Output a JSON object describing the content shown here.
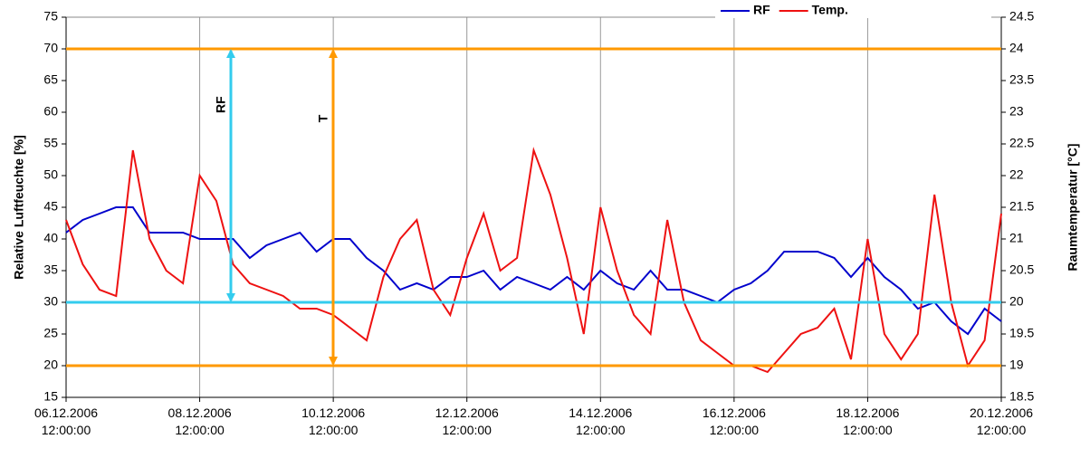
{
  "chart_data": {
    "type": "line",
    "ylabel": "Relative Luftfeuchte [%]",
    "y2label": "Raumtemperatur [°C]",
    "x": [
      "06.12.2006 12:00:00",
      "06.12.2006 18:00:00",
      "07.12.2006 00:00:00",
      "07.12.2006 06:00:00",
      "07.12.2006 12:00:00",
      "07.12.2006 18:00:00",
      "08.12.2006 00:00:00",
      "08.12.2006 06:00:00",
      "08.12.2006 12:00:00",
      "08.12.2006 18:00:00",
      "09.12.2006 00:00:00",
      "09.12.2006 06:00:00",
      "09.12.2006 12:00:00",
      "09.12.2006 18:00:00",
      "10.12.2006 00:00:00",
      "10.12.2006 06:00:00",
      "10.12.2006 12:00:00",
      "10.12.2006 18:00:00",
      "11.12.2006 00:00:00",
      "11.12.2006 06:00:00",
      "11.12.2006 12:00:00",
      "11.12.2006 18:00:00",
      "12.12.2006 00:00:00",
      "12.12.2006 06:00:00",
      "12.12.2006 12:00:00",
      "12.12.2006 18:00:00",
      "13.12.2006 00:00:00",
      "13.12.2006 06:00:00",
      "13.12.2006 12:00:00",
      "13.12.2006 18:00:00",
      "14.12.2006 00:00:00",
      "14.12.2006 06:00:00",
      "14.12.2006 12:00:00",
      "14.12.2006 18:00:00",
      "15.12.2006 00:00:00",
      "15.12.2006 06:00:00",
      "15.12.2006 12:00:00",
      "15.12.2006 18:00:00",
      "16.12.2006 00:00:00",
      "16.12.2006 06:00:00",
      "16.12.2006 12:00:00",
      "16.12.2006 18:00:00",
      "17.12.2006 00:00:00",
      "17.12.2006 06:00:00",
      "17.12.2006 12:00:00",
      "17.12.2006 18:00:00",
      "18.12.2006 00:00:00",
      "18.12.2006 06:00:00",
      "18.12.2006 12:00:00",
      "18.12.2006 18:00:00",
      "19.12.2006 00:00:00",
      "19.12.2006 06:00:00",
      "19.12.2006 12:00:00",
      "19.12.2006 18:00:00",
      "20.12.2006 00:00:00",
      "20.12.2006 06:00:00",
      "20.12.2006 12:00:00"
    ],
    "series": [
      {
        "name": "RF",
        "color": "#0000cc",
        "values": [
          41,
          43,
          44,
          45,
          45,
          41,
          41,
          41,
          40,
          40,
          40,
          37,
          39,
          40,
          41,
          38,
          40,
          40,
          37,
          35,
          32,
          33,
          32,
          34,
          34,
          35,
          32,
          34,
          33,
          32,
          34,
          32,
          35,
          33,
          32,
          35,
          32,
          32,
          31,
          30,
          32,
          33,
          35,
          38,
          38,
          38,
          37,
          34,
          37,
          34,
          32,
          29,
          30,
          27,
          25,
          29,
          27
        ]
      },
      {
        "name": "Temp.",
        "color": "#ee1111",
        "axis": "y2",
        "values": [
          21.3,
          20.6,
          20.2,
          20.1,
          22.4,
          21.0,
          20.5,
          20.3,
          22.0,
          21.6,
          20.6,
          20.3,
          20.2,
          20.1,
          19.9,
          19.9,
          19.8,
          19.6,
          19.4,
          20.4,
          21.0,
          21.3,
          20.2,
          19.8,
          20.7,
          21.4,
          20.5,
          20.7,
          22.4,
          21.7,
          20.7,
          19.5,
          21.5,
          20.5,
          19.8,
          19.5,
          21.3,
          20.0,
          19.4,
          19.2,
          19.0,
          19.0,
          18.9,
          19.2,
          19.5,
          19.6,
          19.9,
          19.1,
          21.0,
          19.5,
          19.1,
          19.5,
          21.7,
          20.0,
          19.0,
          19.4,
          21.4
        ]
      }
    ],
    "xlim": [
      "06.12.2006 12:00:00",
      "20.12.2006 12:00:00"
    ],
    "xticks": [
      "06.12.2006 12:00:00",
      "08.12.2006 12:00:00",
      "10.12.2006 12:00:00",
      "12.12.2006 12:00:00",
      "14.12.2006 12:00:00",
      "16.12.2006 12:00:00",
      "18.12.2006 12:00:00",
      "20.12.2006 12:00:00"
    ],
    "ylim": [
      15,
      75
    ],
    "yticks": [
      15,
      20,
      25,
      30,
      35,
      40,
      45,
      50,
      55,
      60,
      65,
      70,
      75
    ],
    "y2lim": [
      18.5,
      24.5
    ],
    "y2ticks": [
      18.5,
      19,
      19.5,
      20,
      20.5,
      21,
      21.5,
      22,
      22.5,
      23,
      23.5,
      24,
      24.5
    ],
    "reference_lines": [
      {
        "value": 70,
        "axis": "y",
        "color": "#33ccee"
      },
      {
        "value": 30,
        "axis": "y",
        "color": "#33ccee"
      },
      {
        "value": 24,
        "axis": "y2",
        "color": "#ff9900"
      },
      {
        "value": 19,
        "axis": "y2",
        "color": "#ff9900"
      }
    ],
    "annotations": [
      {
        "label": "RF",
        "from": 70,
        "to": 30,
        "axis": "y",
        "color": "#33ccee",
        "text_color": "#0000cc"
      },
      {
        "label": "T",
        "from": 24,
        "to": 19,
        "axis": "y2",
        "color": "#ff9900",
        "text_color": "#ee1111"
      }
    ],
    "grid": "x",
    "legend": "upper right"
  }
}
